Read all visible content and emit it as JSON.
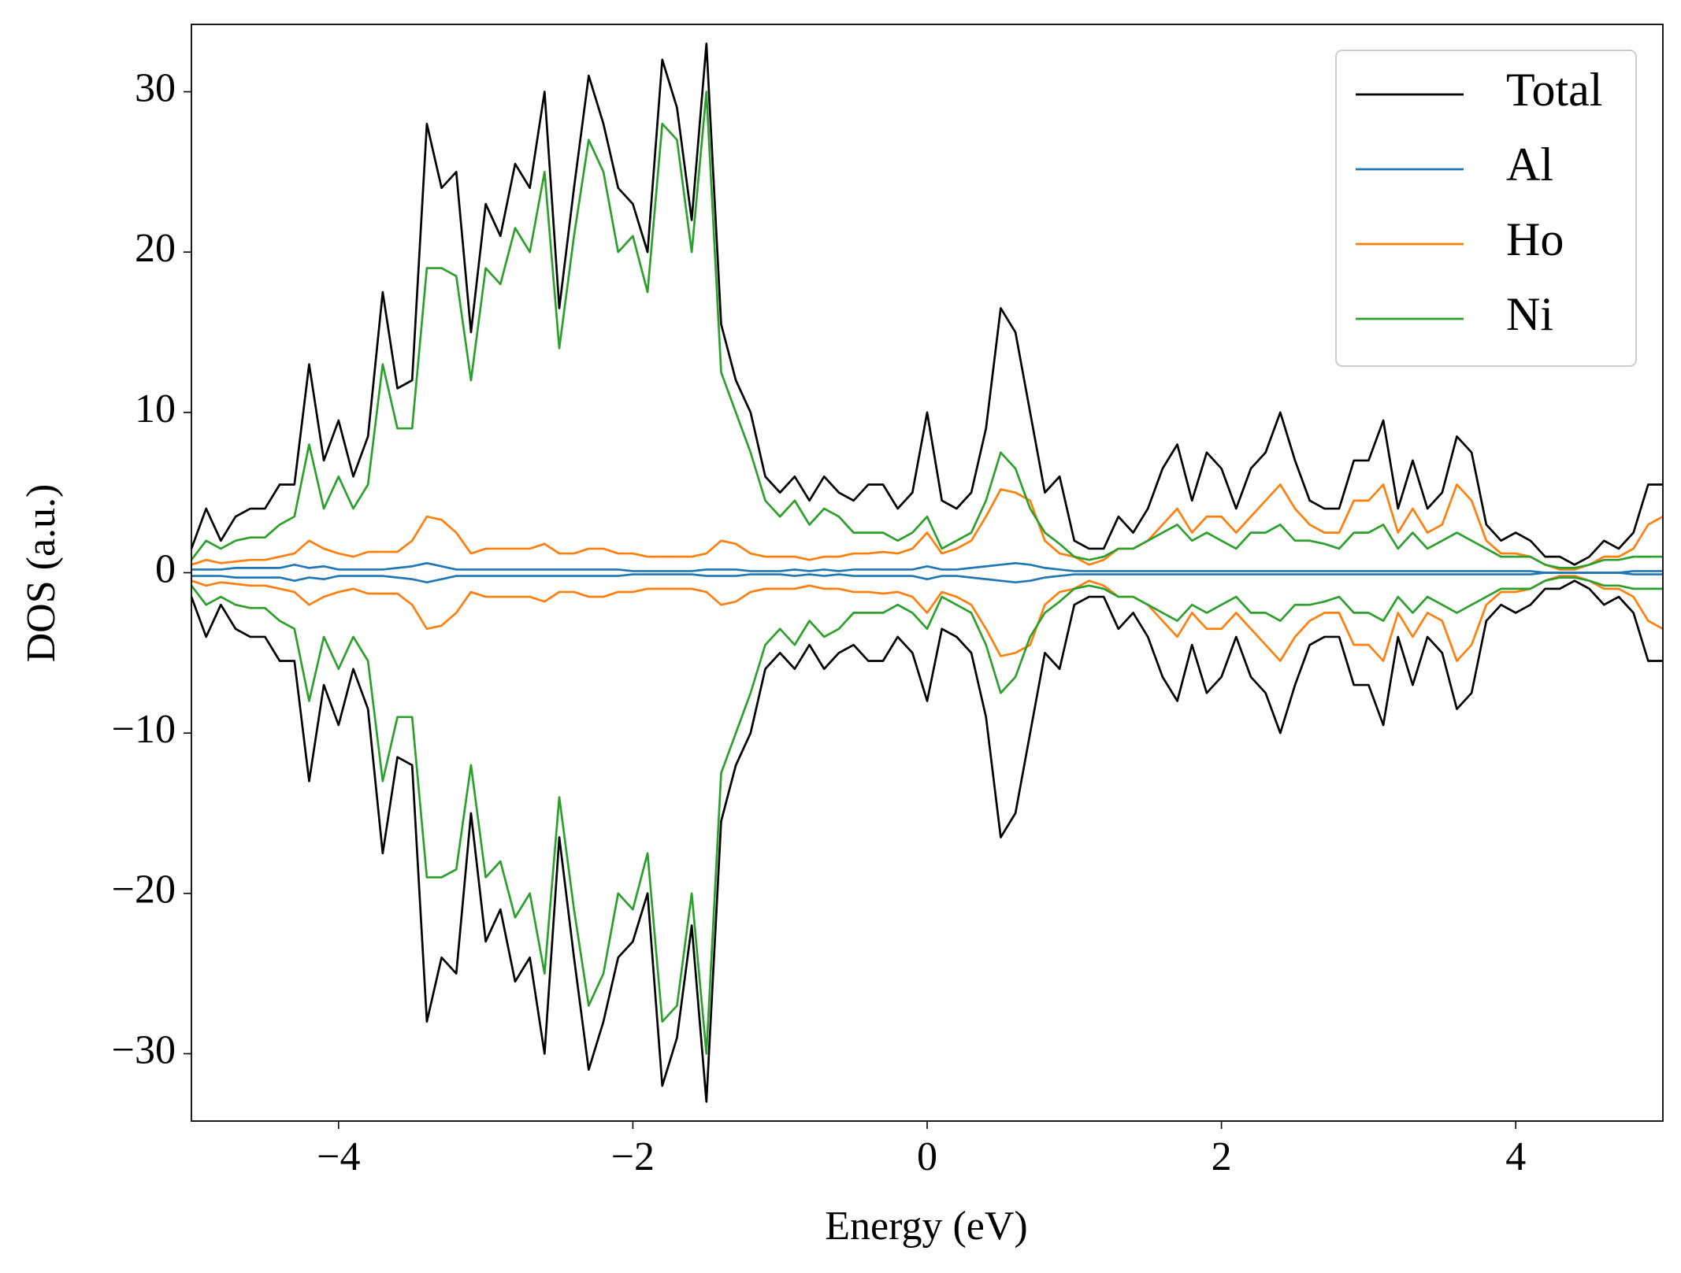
{
  "chart_data": {
    "type": "line",
    "xlabel": "Energy (eV)",
    "ylabel": "DOS (a.u.)",
    "xlim": [
      -5,
      5
    ],
    "ylim": [
      -34.2,
      34.2
    ],
    "xticks": [
      {
        "value": -4,
        "label": "−4"
      },
      {
        "value": -2,
        "label": "−2"
      },
      0,
      2,
      4
    ],
    "yticks": [
      {
        "value": -30,
        "label": "−30"
      },
      {
        "value": -20,
        "label": "−20"
      },
      {
        "value": -10,
        "label": "−10"
      },
      0,
      10,
      20,
      30
    ],
    "legend": "upper right",
    "x": [
      -5,
      -4.9,
      -4.8,
      -4.7,
      -4.6,
      -4.5,
      -4.4,
      -4.3,
      -4.2,
      -4.1,
      -4,
      -3.9,
      -3.8,
      -3.7,
      -3.6,
      -3.5,
      -3.4,
      -3.3,
      -3.2,
      -3.1,
      -3,
      -2.9,
      -2.8,
      -2.7,
      -2.6,
      -2.5,
      -2.4,
      -2.3,
      -2.2,
      -2.1,
      -2,
      -1.9,
      -1.8,
      -1.7,
      -1.6,
      -1.5,
      -1.4,
      -1.3,
      -1.2,
      -1.1,
      -1,
      -0.9,
      -0.8,
      -0.7,
      -0.6,
      -0.5,
      -0.4,
      -0.3,
      -0.2,
      -0.1,
      0,
      0.1,
      0.2,
      0.3,
      0.4,
      0.5,
      0.6,
      0.7,
      0.8,
      0.9,
      1,
      1.1,
      1.2,
      1.3,
      1.4,
      1.5,
      1.6,
      1.7,
      1.8,
      1.9,
      2,
      2.1,
      2.2,
      2.3,
      2.4,
      2.5,
      2.6,
      2.7,
      2.8,
      2.9,
      3,
      3.1,
      3.2,
      3.3,
      3.4,
      3.5,
      3.6,
      3.7,
      3.8,
      3.9,
      4,
      4.1,
      4.2,
      4.3,
      4.4,
      4.5,
      4.6,
      4.7,
      4.8,
      4.9,
      5
    ],
    "series": [
      {
        "name": "Total",
        "color": "#000000",
        "values": [
          1.5,
          4,
          2,
          3.5,
          4,
          4,
          5.5,
          5.5,
          13,
          7,
          9.5,
          6,
          8.5,
          17.5,
          11.5,
          12,
          28,
          24,
          25,
          15,
          23,
          21,
          25.5,
          24,
          30,
          16.5,
          24,
          31,
          28,
          24,
          23,
          20,
          32,
          29,
          22,
          33,
          15.5,
          12,
          10,
          6,
          5,
          6,
          4.5,
          6,
          5,
          4.5,
          5.5,
          5.5,
          4,
          5,
          10,
          4.5,
          4,
          5,
          9,
          16.5,
          15,
          10,
          5,
          6,
          2,
          1.5,
          1.5,
          3.5,
          2.5,
          4,
          6.5,
          8,
          4.5,
          7.5,
          6.5,
          4,
          6.5,
          7.5,
          10,
          7,
          4.5,
          4,
          4,
          7,
          7,
          9.5,
          4,
          7,
          4,
          5,
          8.5,
          7.5,
          3,
          2,
          2.5,
          2,
          1,
          1,
          0.5,
          1,
          2,
          1.5,
          2.5,
          5.5,
          5.5
        ],
        "values_down": [
          -1.5,
          -4,
          -2,
          -3.5,
          -4,
          -4,
          -5.5,
          -5.5,
          -13,
          -7,
          -9.5,
          -6,
          -8.5,
          -17.5,
          -11.5,
          -12,
          -28,
          -24,
          -25,
          -15,
          -23,
          -21,
          -25.5,
          -24,
          -30,
          -16.5,
          -24,
          -31,
          -28,
          -24,
          -23,
          -20,
          -32,
          -29,
          -22,
          -33,
          -15.5,
          -12,
          -10,
          -6,
          -5,
          -6,
          -4.5,
          -6,
          -5,
          -4.5,
          -5.5,
          -5.5,
          -4,
          -5,
          -8,
          -3.5,
          -4,
          -5,
          -9,
          -16.5,
          -15,
          -10,
          -5,
          -6,
          -2,
          -1.5,
          -1.5,
          -3.5,
          -2.5,
          -4,
          -6.5,
          -8,
          -4.5,
          -7.5,
          -6.5,
          -4,
          -6.5,
          -7.5,
          -10,
          -7,
          -4.5,
          -4,
          -4,
          -7,
          -7,
          -9.5,
          -4,
          -7,
          -4,
          -5,
          -8.5,
          -7.5,
          -3,
          -2,
          -2.5,
          -2,
          -1,
          -1,
          -0.5,
          -1,
          -2,
          -1.5,
          -2.5,
          -5.5,
          -5.5
        ]
      },
      {
        "name": "Al",
        "color": "#1f77b4",
        "values": [
          0.2,
          0.2,
          0.2,
          0.3,
          0.3,
          0.3,
          0.3,
          0.5,
          0.3,
          0.4,
          0.2,
          0.2,
          0.2,
          0.2,
          0.3,
          0.4,
          0.6,
          0.4,
          0.2,
          0.2,
          0.2,
          0.2,
          0.2,
          0.2,
          0.2,
          0.2,
          0.2,
          0.2,
          0.2,
          0.2,
          0.1,
          0.1,
          0.1,
          0.1,
          0.1,
          0.2,
          0.2,
          0.2,
          0.1,
          0.1,
          0.1,
          0.2,
          0.1,
          0.2,
          0.1,
          0.2,
          0.2,
          0.2,
          0.2,
          0.2,
          0.4,
          0.2,
          0.2,
          0.3,
          0.4,
          0.5,
          0.6,
          0.5,
          0.3,
          0.2,
          0.1,
          0.1,
          0.1,
          0.1,
          0.1,
          0.1,
          0.1,
          0.1,
          0.1,
          0.1,
          0.1,
          0.1,
          0.1,
          0.1,
          0.1,
          0.1,
          0.1,
          0.1,
          0.1,
          0.1,
          0.1,
          0.1,
          0.1,
          0.1,
          0.1,
          0.1,
          0.1,
          0.1,
          0.1,
          0.1,
          0.1,
          0.1,
          0,
          0,
          0,
          0,
          0,
          0,
          0.1,
          0.1,
          0.1
        ],
        "values_down": [
          -0.2,
          -0.2,
          -0.2,
          -0.3,
          -0.3,
          -0.3,
          -0.3,
          -0.5,
          -0.3,
          -0.4,
          -0.2,
          -0.2,
          -0.2,
          -0.2,
          -0.3,
          -0.4,
          -0.6,
          -0.4,
          -0.2,
          -0.2,
          -0.2,
          -0.2,
          -0.2,
          -0.2,
          -0.2,
          -0.2,
          -0.2,
          -0.2,
          -0.2,
          -0.2,
          -0.1,
          -0.1,
          -0.1,
          -0.1,
          -0.1,
          -0.2,
          -0.2,
          -0.2,
          -0.1,
          -0.1,
          -0.1,
          -0.2,
          -0.1,
          -0.2,
          -0.1,
          -0.2,
          -0.2,
          -0.2,
          -0.2,
          -0.2,
          -0.4,
          -0.2,
          -0.2,
          -0.3,
          -0.4,
          -0.5,
          -0.6,
          -0.5,
          -0.3,
          -0.2,
          -0.1,
          -0.1,
          -0.1,
          -0.1,
          -0.1,
          -0.1,
          -0.1,
          -0.1,
          -0.1,
          -0.1,
          -0.1,
          -0.1,
          -0.1,
          -0.1,
          -0.1,
          -0.1,
          -0.1,
          -0.1,
          -0.1,
          -0.1,
          -0.1,
          -0.1,
          -0.1,
          -0.1,
          -0.1,
          -0.1,
          -0.1,
          -0.1,
          -0.1,
          -0.1,
          -0.1,
          -0.1,
          0,
          0,
          0,
          0,
          0,
          0,
          -0.1,
          -0.1,
          -0.1
        ]
      },
      {
        "name": "Ho",
        "color": "#ff7f0e",
        "values": [
          0.5,
          0.8,
          0.6,
          0.7,
          0.8,
          0.8,
          1,
          1.2,
          2,
          1.5,
          1.2,
          1,
          1.3,
          1.3,
          1.3,
          2,
          3.5,
          3.3,
          2.5,
          1.2,
          1.5,
          1.5,
          1.5,
          1.5,
          1.8,
          1.2,
          1.2,
          1.5,
          1.5,
          1.2,
          1.2,
          1,
          1,
          1,
          1,
          1.2,
          2,
          1.8,
          1.2,
          1,
          1,
          1,
          0.8,
          1,
          1,
          1.2,
          1.2,
          1.3,
          1.2,
          1.5,
          2.5,
          1.2,
          1.5,
          2,
          3.5,
          5.2,
          5,
          4.5,
          2,
          1.2,
          1,
          0.5,
          0.8,
          1.5,
          1.5,
          2,
          3,
          4,
          2.5,
          3.5,
          3.5,
          2.5,
          3.5,
          4.5,
          5.5,
          4,
          3,
          2.5,
          2.5,
          4.5,
          4.5,
          5.5,
          2.5,
          4,
          2.5,
          3,
          5.5,
          4.5,
          2,
          1.2,
          1.2,
          1,
          0.5,
          0.2,
          0.2,
          0.5,
          1,
          1,
          1.5,
          3,
          3.5
        ],
        "values_down": [
          -0.5,
          -0.8,
          -0.6,
          -0.7,
          -0.8,
          -0.8,
          -1,
          -1.2,
          -2,
          -1.5,
          -1.2,
          -1,
          -1.3,
          -1.3,
          -1.3,
          -2,
          -3.5,
          -3.3,
          -2.5,
          -1.2,
          -1.5,
          -1.5,
          -1.5,
          -1.5,
          -1.8,
          -1.2,
          -1.2,
          -1.5,
          -1.5,
          -1.2,
          -1.2,
          -1,
          -1,
          -1,
          -1,
          -1.2,
          -2,
          -1.8,
          -1.2,
          -1,
          -1,
          -1,
          -0.8,
          -1,
          -1,
          -1.2,
          -1.2,
          -1.3,
          -1.2,
          -1.5,
          -2.5,
          -1.2,
          -1.5,
          -2,
          -3.5,
          -5.2,
          -5,
          -4.5,
          -2,
          -1.2,
          -1,
          -0.5,
          -0.8,
          -1.5,
          -1.5,
          -2,
          -3,
          -4,
          -2.5,
          -3.5,
          -3.5,
          -2.5,
          -3.5,
          -4.5,
          -5.5,
          -4,
          -3,
          -2.5,
          -2.5,
          -4.5,
          -4.5,
          -5.5,
          -2.5,
          -4,
          -2.5,
          -3,
          -5.5,
          -4.5,
          -2,
          -1.2,
          -1.2,
          -1,
          -0.5,
          -0.2,
          -0.2,
          -0.5,
          -1,
          -1,
          -1.5,
          -3,
          -3.5
        ]
      },
      {
        "name": "Ni",
        "color": "#2ca02c",
        "values": [
          0.8,
          2,
          1.5,
          2,
          2.2,
          2.2,
          3,
          3.5,
          8,
          4,
          6,
          4,
          5.5,
          13,
          9,
          9,
          19,
          19,
          18.5,
          12,
          19,
          18,
          21.5,
          20,
          25,
          14,
          21,
          27,
          25,
          20,
          21,
          17.5,
          28,
          27,
          20,
          30,
          12.5,
          10,
          7.5,
          4.5,
          3.5,
          4.5,
          3,
          4,
          3.5,
          2.5,
          2.5,
          2.5,
          2,
          2.5,
          3.5,
          1.5,
          2,
          2.5,
          4.5,
          7.5,
          6.5,
          4,
          2.5,
          1.8,
          1,
          0.8,
          1,
          1.5,
          1.5,
          2,
          2.5,
          3,
          2,
          2.5,
          2,
          1.5,
          2.5,
          2.5,
          3,
          2,
          2,
          1.8,
          1.5,
          2.5,
          2.5,
          3,
          1.5,
          2.5,
          1.5,
          2,
          2.5,
          2,
          1.5,
          1,
          1,
          1,
          0.5,
          0.3,
          0.3,
          0.5,
          0.8,
          0.8,
          1,
          1,
          1
        ],
        "values_down": [
          -0.8,
          -2,
          -1.5,
          -2,
          -2.2,
          -2.2,
          -3,
          -3.5,
          -8,
          -4,
          -6,
          -4,
          -5.5,
          -13,
          -9,
          -9,
          -19,
          -19,
          -18.5,
          -12,
          -19,
          -18,
          -21.5,
          -20,
          -25,
          -14,
          -21,
          -27,
          -25,
          -20,
          -21,
          -17.5,
          -28,
          -27,
          -20,
          -30,
          -12.5,
          -10,
          -7.5,
          -4.5,
          -3.5,
          -4.5,
          -3,
          -4,
          -3.5,
          -2.5,
          -2.5,
          -2.5,
          -2,
          -2.5,
          -3.5,
          -1.5,
          -2,
          -2.5,
          -4.5,
          -7.5,
          -6.5,
          -4,
          -2.5,
          -1.8,
          -1,
          -0.8,
          -1,
          -1.5,
          -1.5,
          -2,
          -2.5,
          -3,
          -2,
          -2.5,
          -2,
          -1.5,
          -2.5,
          -2.5,
          -3,
          -2,
          -2,
          -1.8,
          -1.5,
          -2.5,
          -2.5,
          -3,
          -1.5,
          -2.5,
          -1.5,
          -2,
          -2.5,
          -2,
          -1.5,
          -1,
          -1,
          -1,
          -0.5,
          -0.3,
          -0.3,
          -0.5,
          -0.8,
          -0.8,
          -1,
          -1,
          -1
        ]
      }
    ]
  }
}
